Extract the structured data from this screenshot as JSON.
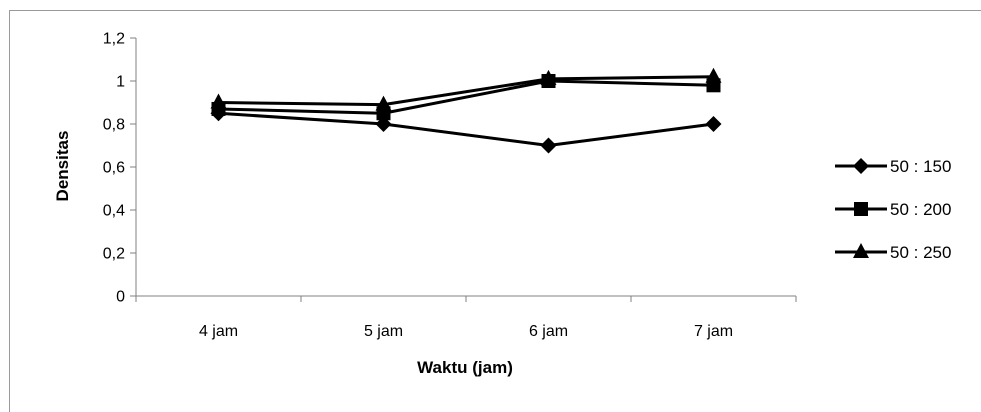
{
  "chart_data": {
    "type": "line",
    "title": "",
    "xlabel": "Waktu (jam)",
    "ylabel": "Densitas",
    "categories": [
      "4 jam",
      "5 jam",
      "6 jam",
      "7 jam"
    ],
    "ylim": [
      0,
      1.2
    ],
    "yticks": [
      0,
      0.2,
      0.4,
      0.6,
      0.8,
      1,
      1.2
    ],
    "ytick_labels": [
      "0",
      "0,2",
      "0,4",
      "0,6",
      "0,8",
      "1",
      "1,2"
    ],
    "grid": false,
    "legend_position": "right",
    "series": [
      {
        "name": "50 : 150",
        "marker": "diamond",
        "color": "#000000",
        "values": [
          0.85,
          0.8,
          0.7,
          0.8
        ]
      },
      {
        "name": "50 : 200",
        "marker": "square",
        "color": "#000000",
        "values": [
          0.87,
          0.85,
          1.0,
          0.98
        ]
      },
      {
        "name": "50 : 250",
        "marker": "triangle",
        "color": "#000000",
        "values": [
          0.9,
          0.89,
          1.01,
          1.02
        ]
      }
    ]
  }
}
